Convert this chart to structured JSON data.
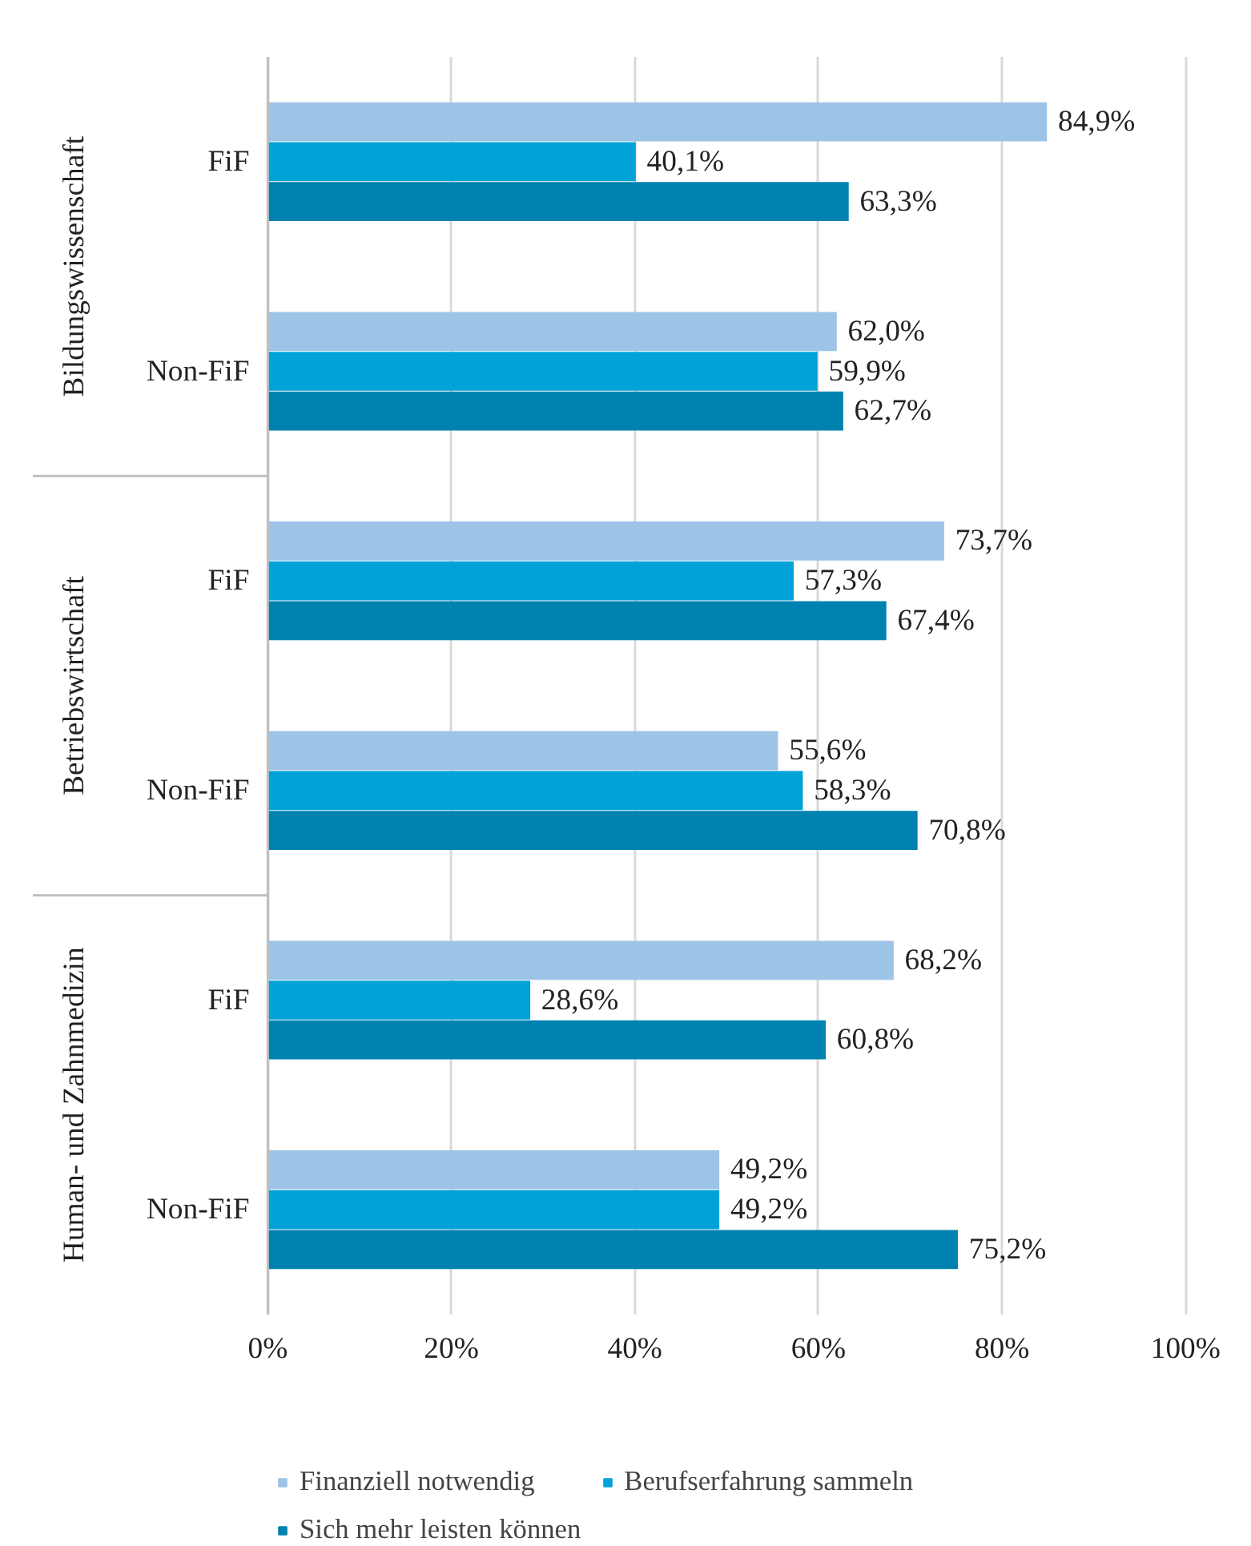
{
  "chart_data": {
    "type": "bar",
    "orientation": "horizontal",
    "categories": [
      "FiF",
      "Non-FiF",
      "FiF",
      "Non-FiF",
      "FiF",
      "Non-FiF"
    ],
    "annotations": [
      "Bildungswissenschaft",
      "Betriebswirtschaft",
      "Human- und Zahnmedizin"
    ],
    "series": [
      {
        "name": "Finanziell notwendig",
        "color": "#9dc3e6",
        "values": [
          84.9,
          62.0,
          73.7,
          55.6,
          68.2,
          49.2
        ],
        "value_labels": [
          "84,9%",
          "62,0%",
          "73,7%",
          "55,6%",
          "68,2%",
          "49,2%"
        ]
      },
      {
        "name": "Berufserfahrung sammeln",
        "color": "#00a2d8",
        "values": [
          40.1,
          59.9,
          57.3,
          58.3,
          28.6,
          49.2
        ],
        "value_labels": [
          "40,1%",
          "59,9%",
          "57,3%",
          "58,3%",
          "28,6%",
          "49,2%"
        ]
      },
      {
        "name": "Sich mehr leisten können",
        "color": "#0082b0",
        "values": [
          63.3,
          62.7,
          67.4,
          70.8,
          60.8,
          75.2
        ],
        "value_labels": [
          "63,3%",
          "62,7%",
          "67,4%",
          "70,8%",
          "60,8%",
          "75,2%"
        ]
      }
    ],
    "xlim": [
      0,
      100
    ],
    "xticks": [
      {
        "value": 0,
        "label": "0%"
      },
      {
        "value": 20,
        "label": "20%"
      },
      {
        "value": 40,
        "label": "40%"
      },
      {
        "value": 60,
        "label": "60%"
      },
      {
        "value": 80,
        "label": "80%"
      },
      {
        "value": 100,
        "label": "100%"
      }
    ],
    "grid": "x",
    "legend": "bottom"
  }
}
